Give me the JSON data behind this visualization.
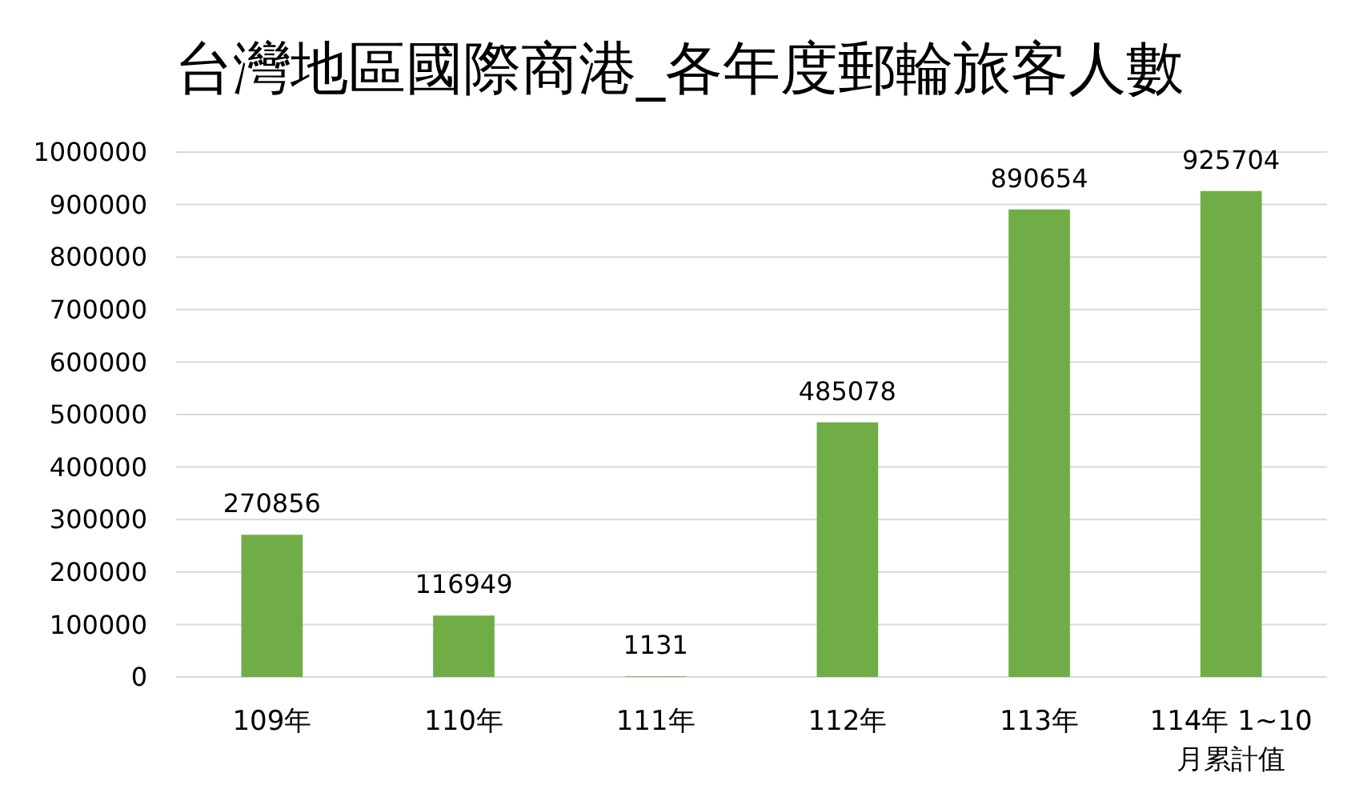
{
  "chart_data": {
    "type": "bar",
    "title": "台灣地區國際商港_各年度郵輪旅客人數",
    "categories": [
      "109年",
      "110年",
      "111年",
      "112年",
      "113年",
      "114年 1~10月累計值"
    ],
    "values": [
      270856,
      116949,
      1131,
      485078,
      890654,
      925704
    ],
    "color": "#70ad47",
    "ylim": [
      0,
      1000000
    ],
    "yticks": [
      0,
      100000,
      200000,
      300000,
      400000,
      500000,
      600000,
      700000,
      800000,
      900000,
      1000000
    ],
    "grid": "y",
    "data_labels": true
  }
}
